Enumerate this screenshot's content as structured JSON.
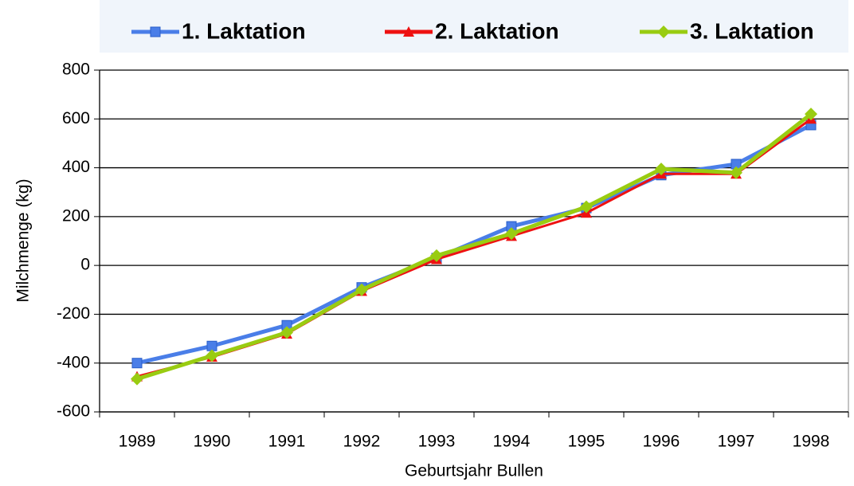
{
  "chart_data": {
    "type": "line",
    "x_label": "Geburtsjahr Bullen",
    "y_label": "Milchmenge (kg)",
    "categories": [
      "1989",
      "1990",
      "1991",
      "1992",
      "1993",
      "1994",
      "1995",
      "1996",
      "1997",
      "1998"
    ],
    "series": [
      {
        "name": "1. Laktation",
        "color": "#4a7ee8",
        "marker": "square",
        "values": [
          -400,
          -330,
          -245,
          -90,
          30,
          160,
          235,
          370,
          415,
          575
        ]
      },
      {
        "name": "2. Laktation",
        "color": "#ee1111",
        "marker": "triangle",
        "values": [
          -455,
          -375,
          -280,
          -105,
          25,
          120,
          215,
          375,
          375,
          600
        ]
      },
      {
        "name": "3. Laktation",
        "color": "#99cc11",
        "marker": "diamond",
        "values": [
          -465,
          -370,
          -275,
          -100,
          40,
          130,
          240,
          395,
          380,
          620
        ]
      }
    ],
    "ylim": [
      -600,
      800
    ],
    "yticks": [
      -600,
      -400,
      -200,
      0,
      200,
      400,
      600,
      800
    ],
    "grid": true
  }
}
